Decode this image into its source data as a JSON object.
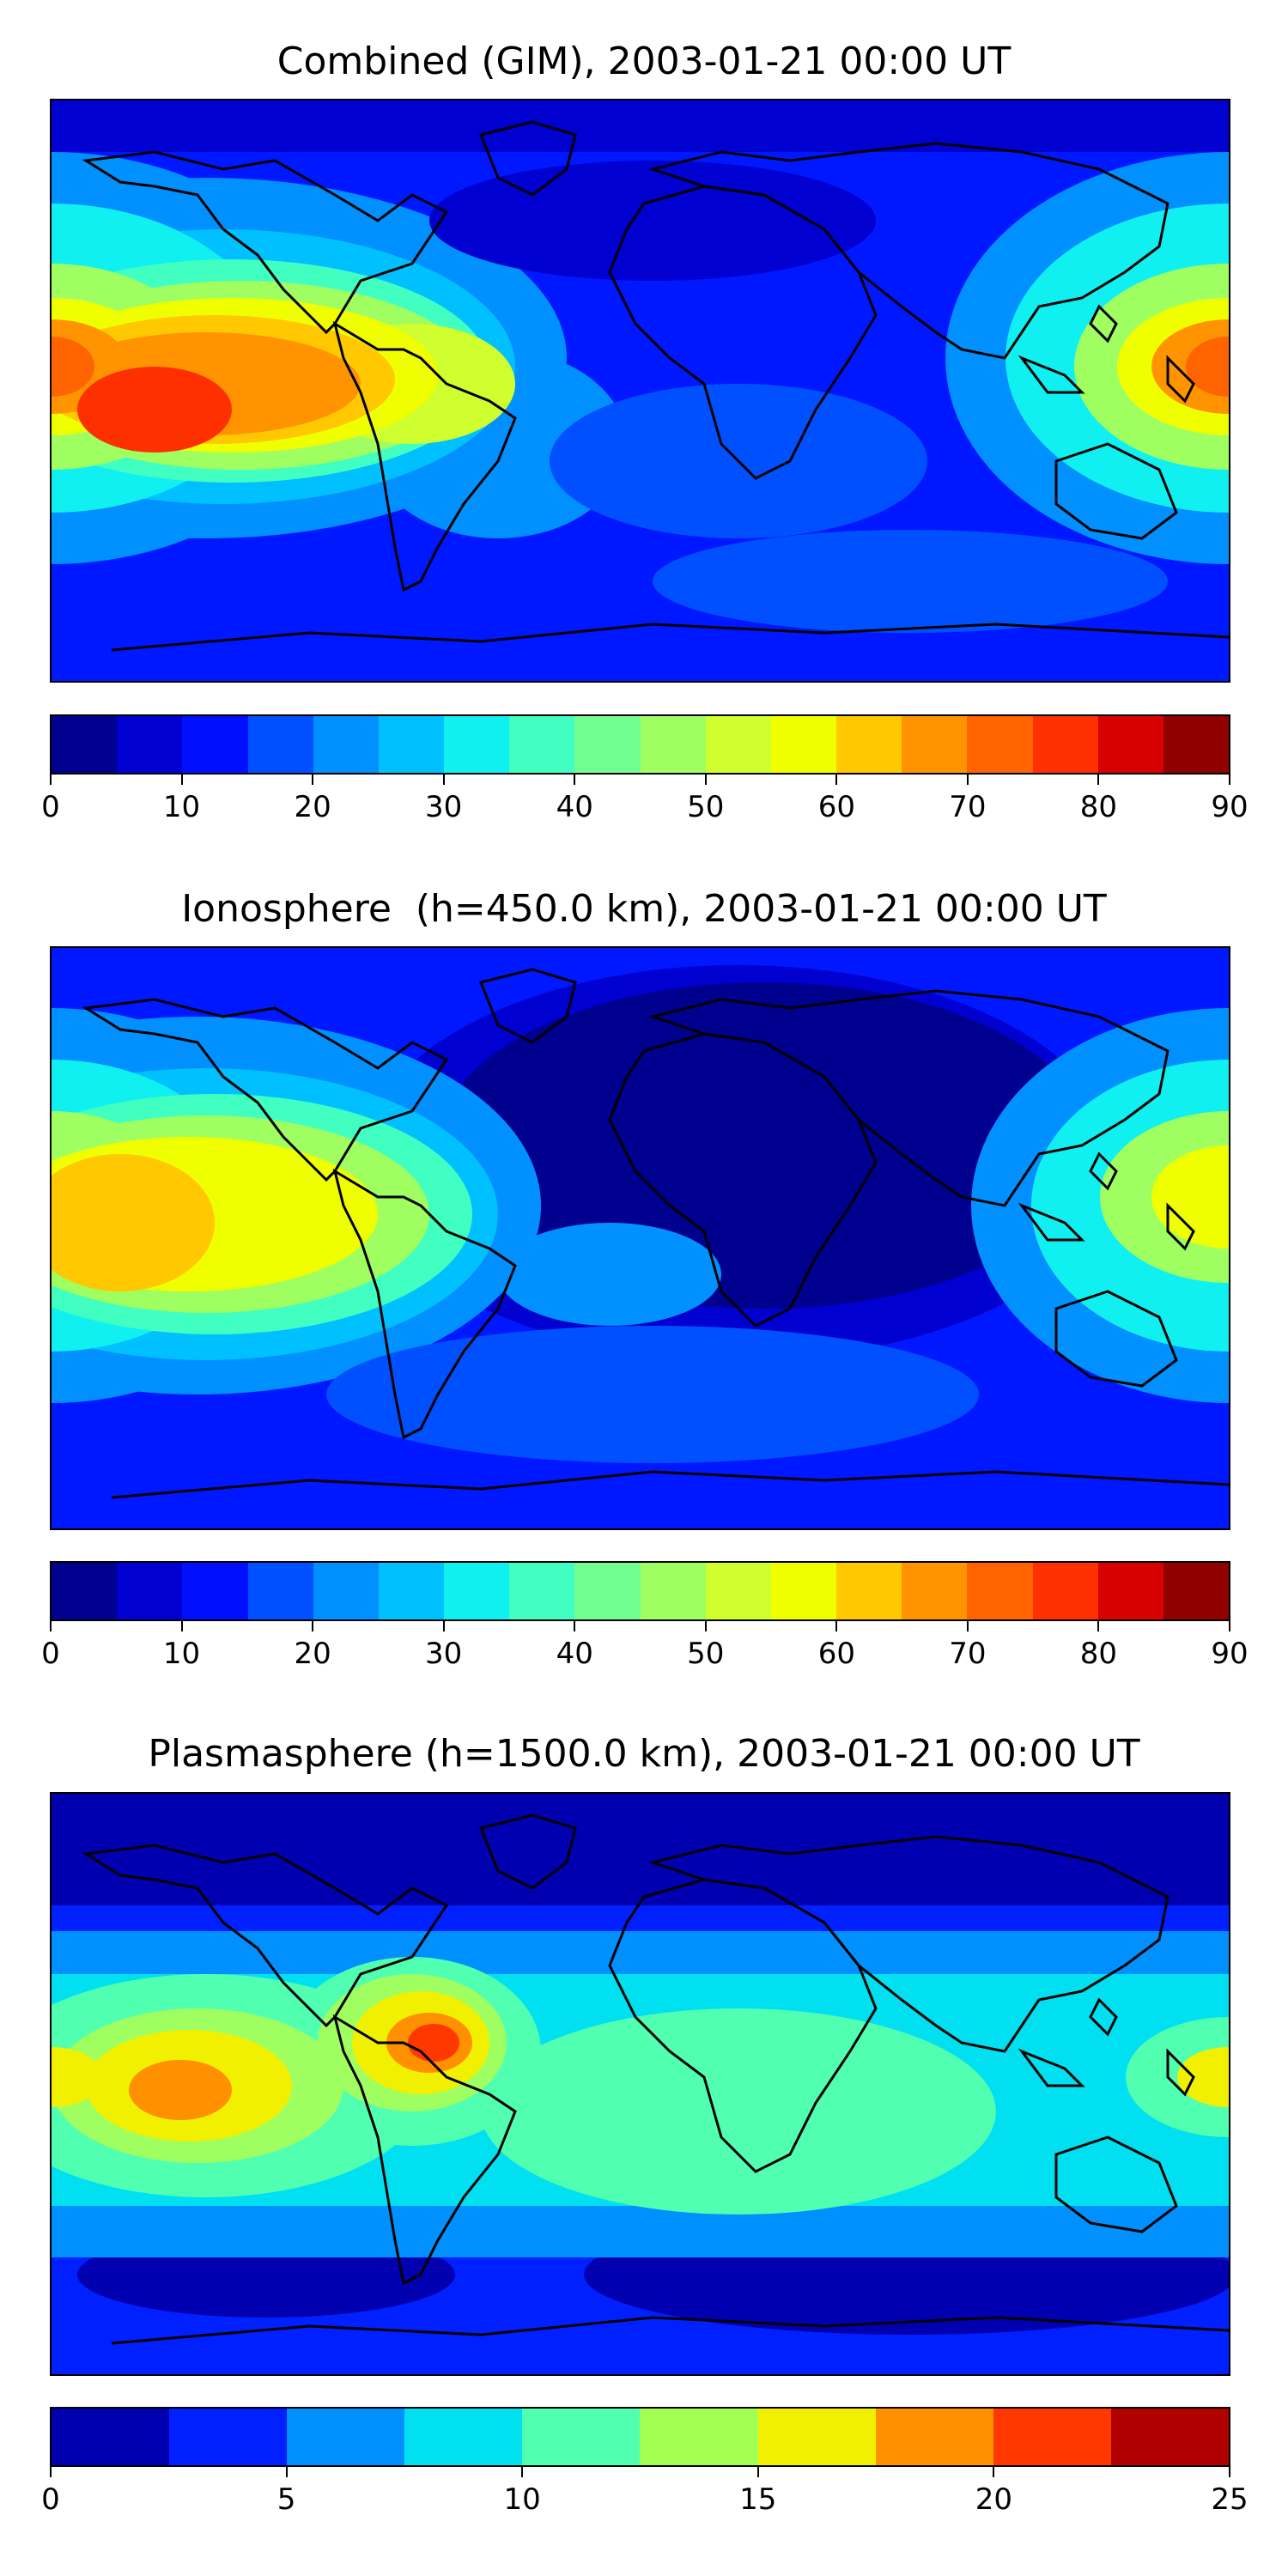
{
  "panels": [
    {
      "title": "Combined (GIM), 2003-01-21 00:00 UT",
      "colorbar": {
        "colors": [
          "#00008f",
          "#0000d0",
          "#0010ff",
          "#0050ff",
          "#0090ff",
          "#00c0ff",
          "#10f0f0",
          "#40ffc0",
          "#70ff90",
          "#a0ff60",
          "#d0ff30",
          "#f0ff00",
          "#ffc800",
          "#ff9400",
          "#ff6400",
          "#ff3000",
          "#d80000",
          "#900000"
        ],
        "ticks": [
          "0",
          "10",
          "20",
          "30",
          "40",
          "50",
          "60",
          "70",
          "80",
          "90"
        ],
        "range": [
          0,
          90
        ]
      }
    },
    {
      "title": "Ionosphere  (h=450.0 km), 2003-01-21 00:00 UT",
      "colorbar": {
        "colors": [
          "#00008f",
          "#0000d0",
          "#0010ff",
          "#0050ff",
          "#0090ff",
          "#00c0ff",
          "#10f0f0",
          "#40ffc0",
          "#70ff90",
          "#a0ff60",
          "#d0ff30",
          "#f0ff00",
          "#ffc800",
          "#ff9400",
          "#ff6400",
          "#ff3000",
          "#d80000",
          "#900000"
        ],
        "ticks": [
          "0",
          "10",
          "20",
          "30",
          "40",
          "50",
          "60",
          "70",
          "80",
          "90"
        ],
        "range": [
          0,
          90
        ]
      }
    },
    {
      "title": "Plasmasphere (h=1500.0 km), 2003-01-21 00:00 UT",
      "colorbar": {
        "colors": [
          "#0000b0",
          "#0020ff",
          "#0090ff",
          "#00e0f0",
          "#50ffb0",
          "#a0ff50",
          "#f0f000",
          "#ff9000",
          "#ff3800",
          "#b00000"
        ],
        "ticks": [
          "0",
          "5",
          "10",
          "15",
          "20",
          "25"
        ],
        "range": [
          0,
          25
        ]
      }
    }
  ]
}
